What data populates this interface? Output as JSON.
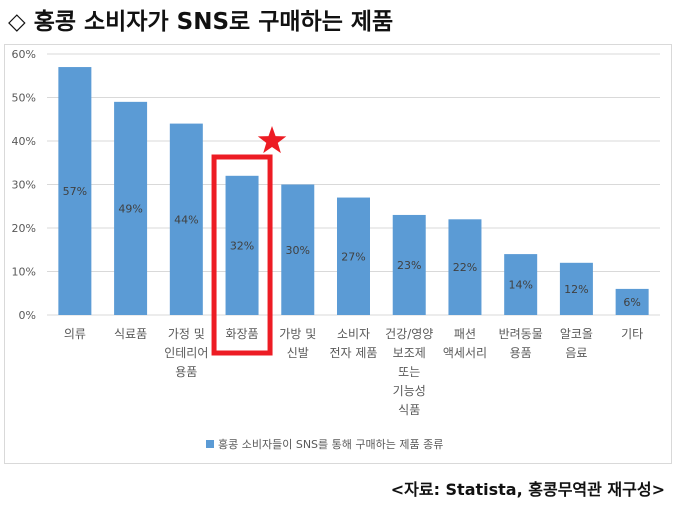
{
  "heading": "◇ 홍콩 소비자가 SNS로 구매하는 제품",
  "source": "<자료: Statista, 홍콩무역관 재구성>",
  "colors": {
    "bar": "#5b9bd5",
    "highlight": "#ed1c24",
    "grid": "#d9d9d9",
    "text": "#595959"
  },
  "chart_data": {
    "type": "bar",
    "title": "",
    "xlabel": "",
    "ylabel": "",
    "ylim": [
      0,
      60
    ],
    "yticks": [
      "0%",
      "10%",
      "20%",
      "30%",
      "40%",
      "50%",
      "60%"
    ],
    "grid": true,
    "legend_position": "bottom",
    "categories": [
      [
        "의류"
      ],
      [
        "식료품"
      ],
      [
        "가정 및",
        "인테리어",
        "용품"
      ],
      [
        "화장품"
      ],
      [
        "가방 및",
        "신발"
      ],
      [
        "소비자",
        "전자 제품"
      ],
      [
        "건강/영양",
        "보조제",
        "또는",
        "기능성",
        "식품"
      ],
      [
        "패션",
        "액세서리"
      ],
      [
        "반려동물",
        "용품"
      ],
      [
        "알코올",
        "음료"
      ],
      [
        "기타"
      ]
    ],
    "series": [
      {
        "name": "홍콩 소비자들이 SNS를 통해 구매하는 제품 종류",
        "values": [
          57,
          49,
          44,
          32,
          30,
          27,
          23,
          22,
          14,
          12,
          6
        ],
        "labels": [
          "57%",
          "49%",
          "44%",
          "32%",
          "30%",
          "27%",
          "23%",
          "22%",
          "14%",
          "12%",
          "6%"
        ]
      }
    ],
    "highlighted_category_index": 3,
    "annotation_icon": "star-icon"
  }
}
